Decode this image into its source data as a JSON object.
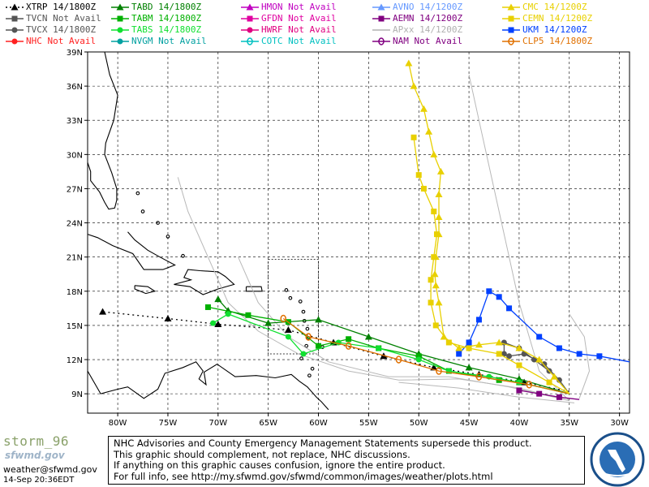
{
  "legend": [
    {
      "label": "XTRP 14/1800Z",
      "color": "#000000",
      "marker": "triangle",
      "dash": true
    },
    {
      "label": "TVCN  Not Avail",
      "color": "#555555",
      "marker": "square"
    },
    {
      "label": "TVCX 14/1800Z",
      "color": "#555555",
      "marker": "circle"
    },
    {
      "label": "NHC  Not Avail",
      "color": "#ff2020",
      "marker": "circle"
    },
    {
      "label": "TABD 14/1800Z",
      "color": "#008000",
      "marker": "triangle"
    },
    {
      "label": "TABM 14/1800Z",
      "color": "#00b000",
      "marker": "square"
    },
    {
      "label": "TABS 14/1800Z",
      "color": "#10e030",
      "marker": "circle"
    },
    {
      "label": "NVGM  Not Avail",
      "color": "#00a0a0",
      "marker": "circle"
    },
    {
      "label": "HMON  Not Avail",
      "color": "#c000c0",
      "marker": "triangle"
    },
    {
      "label": "GFDN  Not Avail",
      "color": "#e000a0",
      "marker": "square"
    },
    {
      "label": "HWRF  Not Avail",
      "color": "#e00080",
      "marker": "circle"
    },
    {
      "label": "COTC  Not Avail",
      "color": "#00c0c0",
      "marker": "ring"
    },
    {
      "label": "AVNO  14/1200Z",
      "color": "#6699ff",
      "marker": "triangle"
    },
    {
      "label": "AEMN  14/1200Z",
      "color": "#800080",
      "marker": "square"
    },
    {
      "label": "APxx  14/1200Z",
      "color": "#b0b0b0",
      "marker": "none"
    },
    {
      "label": "NAM  Not Avail",
      "color": "#800080",
      "marker": "ring"
    },
    {
      "label": "CMC  14/1200Z",
      "color": "#e8d000",
      "marker": "triangle"
    },
    {
      "label": "CEMN  14/1200Z",
      "color": "#e8d000",
      "marker": "square"
    },
    {
      "label": "UKM  14/1200Z",
      "color": "#0040ff",
      "marker": "square"
    },
    {
      "label": "CLP5  14/1800Z",
      "color": "#e07000",
      "marker": "ring"
    }
  ],
  "chart_data": {
    "type": "scatter",
    "xlabel": "",
    "ylabel": "",
    "xlim": [
      -83,
      -29
    ],
    "ylim": [
      7.3,
      39
    ],
    "x_ticks": [
      -80,
      -75,
      -70,
      -65,
      -60,
      -55,
      -50,
      -45,
      -40,
      -35,
      -30
    ],
    "x_tick_labels": [
      "80W",
      "75W",
      "70W",
      "65W",
      "60W",
      "55W",
      "50W",
      "45W",
      "40W",
      "35W",
      "30W"
    ],
    "y_ticks": [
      9,
      12,
      15,
      18,
      21,
      24,
      27,
      30,
      33,
      36,
      39
    ],
    "y_tick_labels": [
      "9N",
      "12N",
      "15N",
      "18N",
      "21N",
      "24N",
      "27N",
      "30N",
      "33N",
      "36N",
      "39N"
    ],
    "series": [
      {
        "name": "XTRP",
        "color": "#000000",
        "marker": "triangle",
        "dash": true,
        "lon": [
          -35,
          -39.5,
          -44,
          -48.5,
          -53.5,
          -58.5,
          -63,
          -70,
          -75,
          -81.5
        ],
        "lat": [
          9.2,
          10.0,
          10.7,
          11.3,
          12.3,
          13.5,
          14.6,
          15.1,
          15.6,
          16.2
        ]
      },
      {
        "name": "TVCX",
        "color": "#555555",
        "marker": "circle",
        "lon": [
          -35,
          -36,
          -37.5,
          -39.5,
          -41,
          -41.5,
          -41.5,
          -40,
          -38.5,
          -37
        ],
        "lat": [
          9.0,
          10.2,
          11.6,
          12.5,
          12.3,
          12.5,
          13.5,
          13.0,
          12.0,
          11.0
        ]
      },
      {
        "name": "TABD",
        "color": "#008000",
        "marker": "triangle",
        "lon": [
          -35,
          -40,
          -45,
          -50,
          -55,
          -60,
          -65,
          -69,
          -70
        ],
        "lat": [
          9.0,
          10.3,
          11.3,
          12.5,
          14.0,
          15.5,
          15.2,
          16.3,
          17.3
        ]
      },
      {
        "name": "TABM",
        "color": "#00b000",
        "marker": "square",
        "lon": [
          -35,
          -40,
          -42,
          -47,
          -50,
          -54,
          -57,
          -60,
          -63,
          -67,
          -71
        ],
        "lat": [
          9.0,
          10.0,
          10.2,
          11.0,
          12.3,
          13.0,
          13.8,
          13.2,
          15.3,
          15.9,
          16.6
        ]
      },
      {
        "name": "TABS",
        "color": "#10e030",
        "marker": "circle",
        "lon": [
          -35,
          -40,
          -43,
          -47,
          -50,
          -54,
          -58,
          -61.5,
          -63,
          -69,
          -70.5
        ],
        "lat": [
          9.0,
          10.0,
          10.5,
          11.0,
          12.0,
          13.0,
          13.5,
          12.5,
          14.0,
          16.0,
          15.2
        ]
      },
      {
        "name": "CLP5",
        "color": "#e07000",
        "marker": "ring",
        "lon": [
          -35,
          -39,
          -44,
          -48,
          -52,
          -57,
          -61,
          -63.5
        ],
        "lat": [
          9.0,
          9.8,
          10.5,
          11.0,
          12.0,
          13.2,
          14.0,
          15.6
        ]
      },
      {
        "name": "UKM",
        "color": "#0040ff",
        "marker": "square",
        "lon": [
          -29,
          -32,
          -34,
          -36,
          -38,
          -41,
          -42,
          -43,
          -44,
          -45,
          -46
        ],
        "lat": [
          11.8,
          12.3,
          12.5,
          13.0,
          14.0,
          16.5,
          17.5,
          18.0,
          15.5,
          13.5,
          12.5
        ]
      },
      {
        "name": "AEMN",
        "color": "#800080",
        "marker": "square",
        "lon": [
          -34,
          -36,
          -38,
          -40
        ],
        "lat": [
          8.5,
          8.7,
          9.0,
          9.3
        ]
      },
      {
        "name": "CMC",
        "color": "#e8d000",
        "marker": "triangle",
        "lon": [
          -35,
          -36.5,
          -38,
          -40,
          -42,
          -44,
          -46,
          -47.5,
          -48,
          -48.3,
          -48.4,
          -48.3,
          -48,
          -48,
          -48,
          -47.8,
          -48.5,
          -49,
          -49.5,
          -50.5,
          -51
        ],
        "lat": [
          9.0,
          10.5,
          12.0,
          13.0,
          13.5,
          13.3,
          13.0,
          14.0,
          17.0,
          18.5,
          19.5,
          21.0,
          23.0,
          24.5,
          26.5,
          28.5,
          30.0,
          32.0,
          34.0,
          36.0,
          38.0
        ]
      },
      {
        "name": "CEMN",
        "color": "#e8d000",
        "marker": "square",
        "lon": [
          -35,
          -37,
          -40,
          -42,
          -45,
          -47,
          -48.3,
          -48.8,
          -48.8,
          -48.5,
          -48.2,
          -48.5,
          -49.5,
          -50,
          -50.5
        ],
        "lat": [
          9.0,
          10.0,
          11.5,
          12.5,
          13.0,
          13.5,
          15.0,
          17.0,
          19.0,
          21.0,
          23.0,
          25.0,
          27.0,
          28.2,
          31.5
        ]
      }
    ]
  },
  "footer": {
    "storm_logo": "storm_96",
    "sfwmd_logo": "sfwmd.gov",
    "contact": "weather@sfwmd.gov",
    "timestamp": "14-Sep 20:36EDT",
    "disclaimer": [
      "NHC Advisories and County Emergency Management Statements supersede this product.",
      "This graphic should complement, not replace, NHC discussions.",
      "If anything on this graphic causes confusion, ignore the entire product.",
      "For full info, see  http://my.sfwmd.gov/sfwmd/common/images/weather/plots.html"
    ],
    "seal_text": "SOUTH FLORIDA WATER MANAGEMENT DISTRICT"
  }
}
